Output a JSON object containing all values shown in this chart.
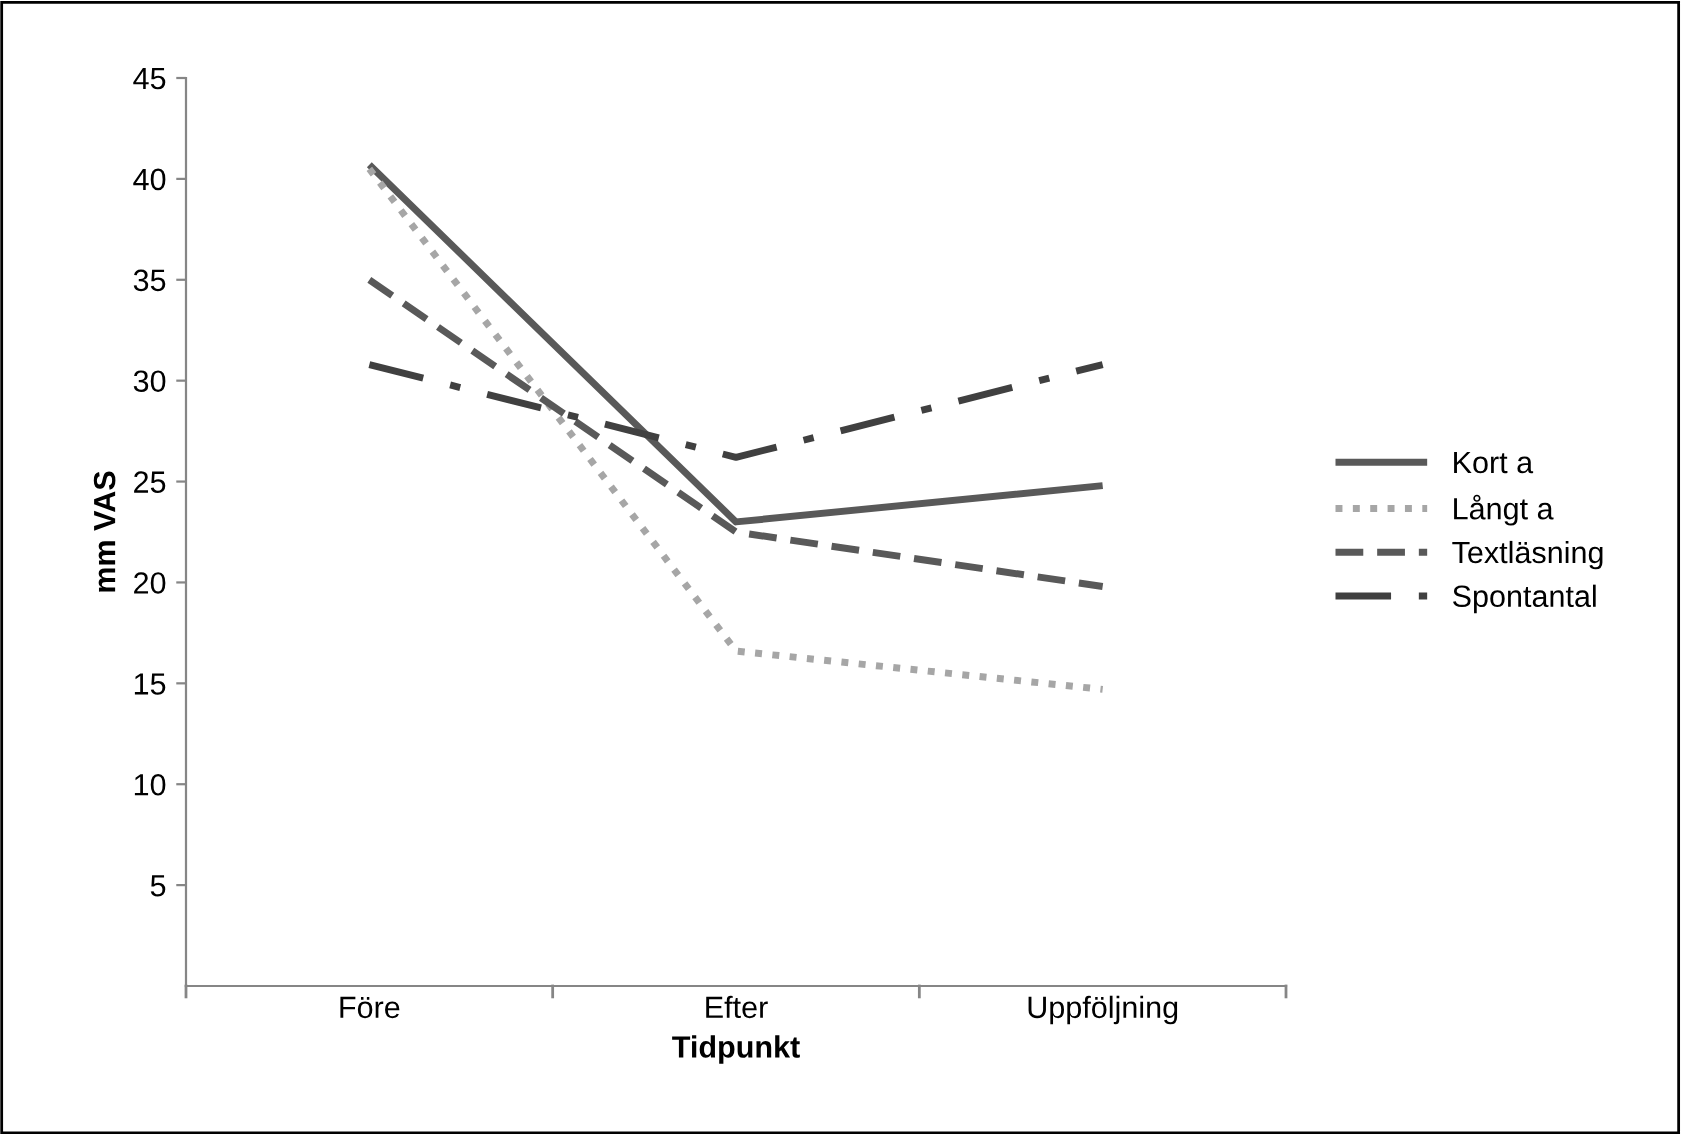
{
  "chart_data": {
    "type": "line",
    "xlabel": "Tidpunkt",
    "ylabel": "mm VAS",
    "categories": [
      "Före",
      "Efter",
      "Uppföljning"
    ],
    "series": [
      {
        "name": "Kort a",
        "color": "#595959",
        "line_style": "solid",
        "values": [
          40.7,
          23.0,
          24.8
        ]
      },
      {
        "name": "Långt a",
        "color": "#a6a6a6",
        "line_style": "dotted",
        "values": [
          40.5,
          16.6,
          14.7
        ]
      },
      {
        "name": "Textläsning",
        "color": "#595959",
        "line_style": "dashed",
        "values": [
          35.0,
          22.5,
          19.8
        ]
      },
      {
        "name": "Spontantal",
        "color": "#404040",
        "line_style": "dashdot",
        "values": [
          30.8,
          26.2,
          30.8
        ]
      }
    ],
    "ylim": [
      0,
      45
    ],
    "yticks": [
      5,
      10,
      15,
      20,
      25,
      30,
      35,
      40,
      45
    ],
    "grid": false,
    "legend": "right",
    "marker": "none"
  }
}
